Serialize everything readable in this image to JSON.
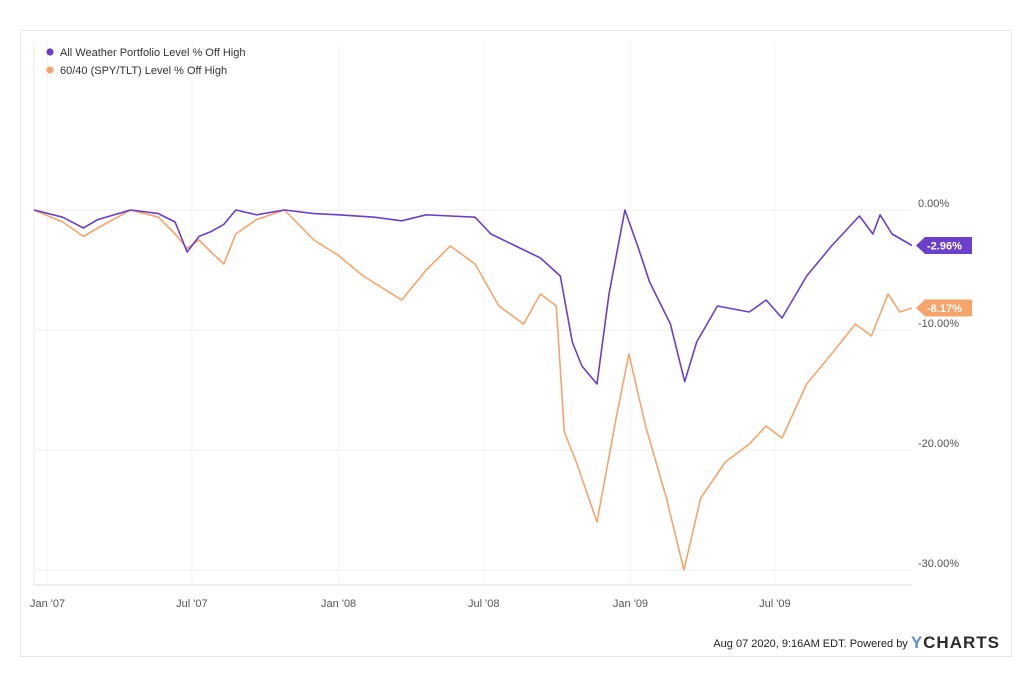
{
  "colors": {
    "all_weather": "#6a3fc9",
    "sixty_forty": "#f6a46b",
    "grid": "#eeeeee",
    "axis_text": "#555555"
  },
  "footer": {
    "timestamp": "Aug 07 2020, 9:16AM EDT.",
    "powered_by": "Powered by",
    "brand_y": "Y",
    "brand_rest": "CHARTS"
  },
  "chart_data": {
    "type": "line",
    "legend_position": "top-left",
    "grid": true,
    "xlim": [
      "2006-12-15",
      "2009-12-20"
    ],
    "ylim": [
      -31,
      1
    ],
    "x_ticks": [
      "2007-01-01",
      "2007-07-01",
      "2008-01-01",
      "2008-07-01",
      "2009-01-01",
      "2009-07-01"
    ],
    "x_tick_labels": [
      "Jan '07",
      "Jul '07",
      "Jan '08",
      "Jul '08",
      "Jan '09",
      "Jul '09"
    ],
    "y_ticks": [
      0,
      -10,
      -20,
      -30
    ],
    "y_tick_labels": [
      "0.00%",
      "-10.00%",
      "-20.00%",
      "-30.00%"
    ],
    "series": [
      {
        "name": "All Weather Portfolio Level % Off High",
        "color": "#6a3fc9",
        "last_label": "-2.96%",
        "points": [
          [
            "2006-12-15",
            0
          ],
          [
            "2007-01-20",
            -0.6
          ],
          [
            "2007-02-15",
            -1.5
          ],
          [
            "2007-03-05",
            -0.8
          ],
          [
            "2007-04-15",
            0
          ],
          [
            "2007-05-20",
            -0.3
          ],
          [
            "2007-06-10",
            -1.0
          ],
          [
            "2007-06-25",
            -3.5
          ],
          [
            "2007-07-10",
            -2.2
          ],
          [
            "2007-07-25",
            -1.8
          ],
          [
            "2007-08-10",
            -1.2
          ],
          [
            "2007-08-25",
            0
          ],
          [
            "2007-09-20",
            -0.4
          ],
          [
            "2007-10-25",
            0
          ],
          [
            "2007-12-01",
            -0.3
          ],
          [
            "2008-01-01",
            -0.4
          ],
          [
            "2008-02-15",
            -0.6
          ],
          [
            "2008-03-20",
            -0.9
          ],
          [
            "2008-04-20",
            -0.4
          ],
          [
            "2008-05-20",
            -0.5
          ],
          [
            "2008-06-20",
            -0.6
          ],
          [
            "2008-07-10",
            -2.0
          ],
          [
            "2008-08-10",
            -3.0
          ],
          [
            "2008-09-10",
            -4.0
          ],
          [
            "2008-10-05",
            -5.5
          ],
          [
            "2008-10-20",
            -11.0
          ],
          [
            "2008-11-01",
            -13.0
          ],
          [
            "2008-11-20",
            -14.5
          ],
          [
            "2008-12-05",
            -7.0
          ],
          [
            "2008-12-25",
            0
          ],
          [
            "2009-01-10",
            -3.0
          ],
          [
            "2009-01-25",
            -6.0
          ],
          [
            "2009-02-20",
            -9.5
          ],
          [
            "2009-03-10",
            -14.3
          ],
          [
            "2009-03-25",
            -11.0
          ],
          [
            "2009-04-20",
            -8.0
          ],
          [
            "2009-05-30",
            -8.5
          ],
          [
            "2009-06-20",
            -7.5
          ],
          [
            "2009-07-10",
            -9.0
          ],
          [
            "2009-08-10",
            -5.5
          ],
          [
            "2009-09-10",
            -3.0
          ],
          [
            "2009-10-15",
            -0.5
          ],
          [
            "2009-11-01",
            -2.0
          ],
          [
            "2009-11-10",
            -0.4
          ],
          [
            "2009-11-25",
            -2.0
          ],
          [
            "2009-12-20",
            -2.96
          ]
        ]
      },
      {
        "name": "60/40 (SPY/TLT) Level % Off High",
        "color": "#f6a46b",
        "last_label": "-8.17%",
        "points": [
          [
            "2006-12-15",
            0
          ],
          [
            "2007-01-20",
            -1.0
          ],
          [
            "2007-02-15",
            -2.2
          ],
          [
            "2007-03-05",
            -1.5
          ],
          [
            "2007-04-15",
            0
          ],
          [
            "2007-05-20",
            -0.6
          ],
          [
            "2007-06-10",
            -2.0
          ],
          [
            "2007-06-25",
            -3.2
          ],
          [
            "2007-07-10",
            -2.5
          ],
          [
            "2007-07-25",
            -3.5
          ],
          [
            "2007-08-10",
            -4.5
          ],
          [
            "2007-08-25",
            -2.0
          ],
          [
            "2007-09-20",
            -0.8
          ],
          [
            "2007-10-25",
            0
          ],
          [
            "2007-12-01",
            -2.5
          ],
          [
            "2008-01-01",
            -3.8
          ],
          [
            "2008-02-01",
            -5.5
          ],
          [
            "2008-03-20",
            -7.5
          ],
          [
            "2008-04-20",
            -5.0
          ],
          [
            "2008-05-20",
            -3.0
          ],
          [
            "2008-06-20",
            -4.5
          ],
          [
            "2008-07-20",
            -8.0
          ],
          [
            "2008-08-20",
            -9.5
          ],
          [
            "2008-09-10",
            -7.0
          ],
          [
            "2008-09-30",
            -8.0
          ],
          [
            "2008-10-10",
            -18.5
          ],
          [
            "2008-10-25",
            -21.0
          ],
          [
            "2008-11-20",
            -26.0
          ],
          [
            "2008-12-15",
            -17.0
          ],
          [
            "2008-12-30",
            -12.0
          ],
          [
            "2009-01-20",
            -18.0
          ],
          [
            "2009-02-15",
            -24.0
          ],
          [
            "2009-03-09",
            -30.0
          ],
          [
            "2009-03-30",
            -24.0
          ],
          [
            "2009-04-30",
            -21.0
          ],
          [
            "2009-05-30",
            -19.5
          ],
          [
            "2009-06-20",
            -18.0
          ],
          [
            "2009-07-10",
            -19.0
          ],
          [
            "2009-08-10",
            -14.5
          ],
          [
            "2009-09-10",
            -12.0
          ],
          [
            "2009-10-10",
            -9.5
          ],
          [
            "2009-10-30",
            -10.5
          ],
          [
            "2009-11-20",
            -7.0
          ],
          [
            "2009-12-05",
            -8.5
          ],
          [
            "2009-12-20",
            -8.17
          ]
        ]
      }
    ]
  }
}
